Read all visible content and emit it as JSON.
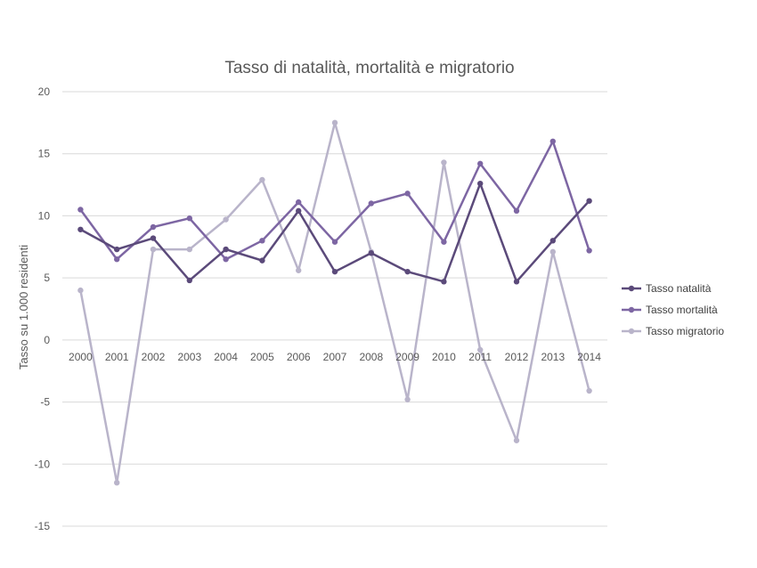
{
  "chart_data": {
    "type": "line",
    "title": "Tasso di natalità, mortalità e migratorio",
    "xlabel": "",
    "ylabel": "Tasso su 1.000 residenti",
    "categories": [
      "2000",
      "2001",
      "2002",
      "2003",
      "2004",
      "2005",
      "2006",
      "2007",
      "2008",
      "2009",
      "2010",
      "2011",
      "2012",
      "2013",
      "2014"
    ],
    "ylim": [
      -15,
      20
    ],
    "yticks": [
      -15,
      -10,
      -5,
      0,
      5,
      10,
      15,
      20
    ],
    "ytick_labels": [
      "-15",
      "-10",
      "-5",
      "0",
      "5",
      "10",
      "15",
      "20"
    ],
    "grid": true,
    "legend_position": "right",
    "series": [
      {
        "name": "Tasso natalità",
        "color": "#5b4a7a",
        "values": [
          8.9,
          7.3,
          8.2,
          4.8,
          7.3,
          6.4,
          10.4,
          5.5,
          7.0,
          5.5,
          4.7,
          12.6,
          4.7,
          8.0,
          11.2
        ]
      },
      {
        "name": "Tasso mortalità",
        "color": "#7d66a3",
        "values": [
          10.5,
          6.5,
          9.1,
          9.8,
          6.5,
          8.0,
          11.1,
          7.9,
          11.0,
          11.8,
          7.9,
          14.2,
          10.4,
          16.0,
          7.2
        ]
      },
      {
        "name": "Tasso migratorio",
        "color": "#b9b4ca",
        "values": [
          4.0,
          -11.5,
          7.3,
          7.3,
          9.7,
          12.9,
          5.6,
          17.5,
          7.1,
          -4.8,
          14.3,
          -0.8,
          -8.1,
          7.1,
          -4.1
        ]
      }
    ]
  }
}
